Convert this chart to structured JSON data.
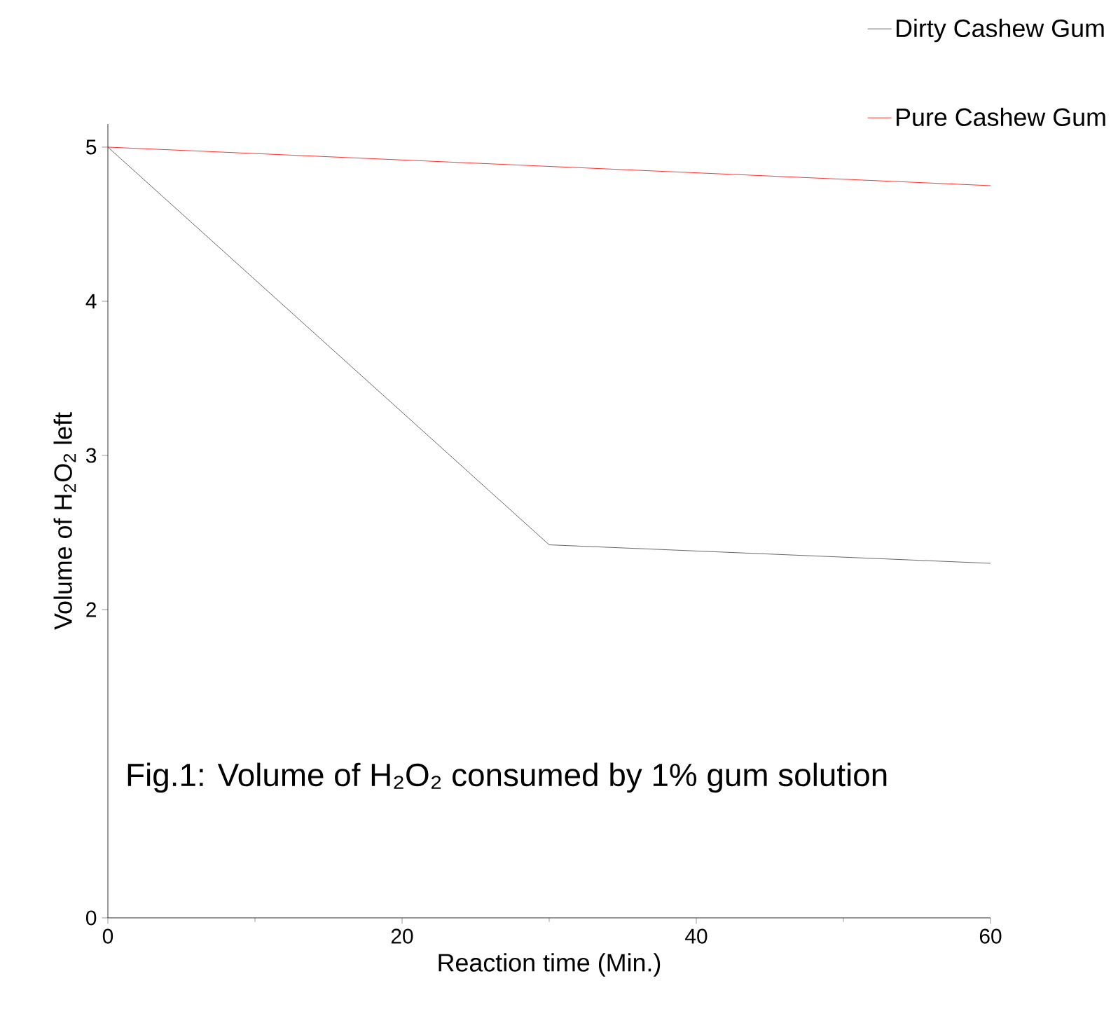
{
  "chart_data": {
    "type": "line",
    "xlabel": "Reaction time (Min.)",
    "ylabel": "Volume of H$_{2}$O$_{2}$ left",
    "x": [
      0,
      30,
      60
    ],
    "series": [
      {
        "name": "Dirty Cashew Gum",
        "color": "#404040",
        "values": [
          5,
          2.42,
          2.3
        ]
      },
      {
        "name": "Pure Cashew Gum",
        "color": "#ff0000",
        "x": [
          0,
          60
        ],
        "values": [
          5,
          4.75
        ]
      }
    ],
    "xlim": [
      0,
      60
    ],
    "ylim": [
      0,
      5.15
    ],
    "xticks": [
      0,
      20,
      40,
      60
    ],
    "yticks": [
      0,
      2,
      3,
      4,
      5
    ],
    "legend": "top right",
    "marker": "none",
    "line_style": "solid",
    "grid": false,
    "annotations": [
      "Fig.1: Volume of H₂O₂ consumed by 1% gum solution"
    ]
  }
}
